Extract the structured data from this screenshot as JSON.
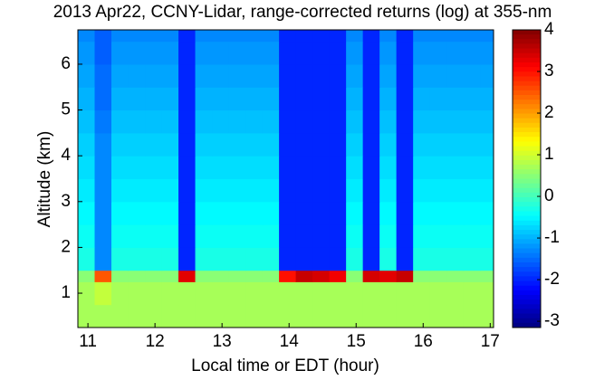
{
  "chart_data": {
    "type": "heatmap",
    "title": "2013 Apr22, CCNY-Lidar, range-corrected returns (log) at 355-nm",
    "x_label": "Local time or EDT (hour)",
    "y_label": "Altitude (km)",
    "colormap": "jet",
    "x_edges": [
      10.85,
      11.1,
      11.35,
      11.6,
      11.85,
      12.1,
      12.35,
      12.6,
      12.85,
      13.1,
      13.35,
      13.6,
      13.85,
      14.1,
      14.35,
      14.6,
      14.85,
      15.1,
      15.35,
      15.6,
      15.85,
      16.1,
      16.35,
      16.6,
      16.85,
      17.05
    ],
    "y_edges": [
      0.25,
      0.75,
      1.25,
      1.5,
      2,
      2.5,
      3,
      3.5,
      4,
      4.5,
      5,
      5.5,
      6,
      6.5,
      6.75
    ],
    "z": [
      [
        0.7,
        0.7,
        0.7,
        0.7,
        0.7,
        0.7,
        0.7,
        0.7,
        0.7,
        0.7,
        0.7,
        0.7,
        0.7,
        0.7,
        0.7,
        0.7,
        0.7,
        0.7,
        0.7,
        0.7,
        0.7,
        0.7,
        0.7,
        0.7,
        0.7
      ],
      [
        0.7,
        0.9,
        0.7,
        0.7,
        0.7,
        0.7,
        0.7,
        0.7,
        0.7,
        0.7,
        0.7,
        0.7,
        0.7,
        0.7,
        0.7,
        0.7,
        0.7,
        0.7,
        0.7,
        0.7,
        0.7,
        0.7,
        0.7,
        0.7,
        0.7
      ],
      [
        0.5,
        2.5,
        0.5,
        0.5,
        0.5,
        0.5,
        3.3,
        0.5,
        0.5,
        0.5,
        0.5,
        0.5,
        3.0,
        3.5,
        3.4,
        3.2,
        0.5,
        3.4,
        3.3,
        3.5,
        0.5,
        0.5,
        0.5,
        0.5,
        0.5
      ],
      [
        -0.3,
        -1.3,
        -0.3,
        -0.3,
        -0.3,
        -0.3,
        -2,
        -0.3,
        -0.3,
        -0.3,
        -0.3,
        -0.3,
        -2,
        -2,
        -2,
        -2,
        -0.3,
        -2,
        -0.3,
        -2,
        -0.3,
        -0.3,
        -0.3,
        -0.3,
        -0.3
      ],
      [
        -0.4,
        -1.3,
        -0.4,
        -0.4,
        -0.4,
        -0.4,
        -2,
        -0.4,
        -0.4,
        -0.4,
        -0.4,
        -0.4,
        -2,
        -2,
        -2,
        -2,
        -0.4,
        -2,
        -0.4,
        -2,
        -0.4,
        -0.4,
        -0.4,
        -0.4,
        -0.4
      ],
      [
        -0.5,
        -1.3,
        -0.5,
        -0.5,
        -0.5,
        -0.5,
        -2,
        -0.5,
        -0.5,
        -0.5,
        -0.5,
        -0.5,
        -2,
        -2,
        -2,
        -2,
        -0.5,
        -2,
        -0.5,
        -2,
        -0.5,
        -0.5,
        -0.5,
        -0.5,
        -0.5
      ],
      [
        -0.6,
        -1.3,
        -0.6,
        -0.6,
        -0.6,
        -0.6,
        -2,
        -0.6,
        -0.6,
        -0.6,
        -0.6,
        -0.6,
        -2,
        -2,
        -2,
        -2,
        -0.6,
        -2,
        -0.6,
        -2,
        -0.6,
        -0.6,
        -0.6,
        -0.6,
        -0.6
      ],
      [
        -0.7,
        -1.3,
        -0.7,
        -0.7,
        -0.7,
        -0.7,
        -2,
        -0.7,
        -0.7,
        -0.7,
        -0.7,
        -0.7,
        -2,
        -2,
        -2,
        -2,
        -0.7,
        -2,
        -0.7,
        -2,
        -0.7,
        -0.7,
        -0.7,
        -0.7,
        -0.7
      ],
      [
        -0.8,
        -1.3,
        -0.8,
        -0.8,
        -0.8,
        -0.8,
        -2,
        -0.8,
        -0.8,
        -0.8,
        -0.8,
        -0.8,
        -2,
        -2,
        -2,
        -2,
        -0.8,
        -2,
        -0.8,
        -2,
        -0.8,
        -0.8,
        -0.8,
        -0.8,
        -0.8
      ],
      [
        -0.9,
        -1.4,
        -0.9,
        -0.9,
        -0.9,
        -0.9,
        -2,
        -0.9,
        -0.9,
        -0.9,
        -0.9,
        -0.9,
        -2,
        -2,
        -2,
        -2,
        -0.9,
        -2,
        -0.9,
        -2,
        -0.9,
        -0.9,
        -0.9,
        -0.9,
        -0.9
      ],
      [
        -1.0,
        -1.5,
        -1.0,
        -1.0,
        -1.0,
        -1.0,
        -2,
        -1.0,
        -1.0,
        -1.0,
        -1.0,
        -1.0,
        -2,
        -2,
        -2,
        -2,
        -1.0,
        -2,
        -1.0,
        -2,
        -1.0,
        -1.0,
        -1.0,
        -1.0,
        -1.0
      ],
      [
        -1.1,
        -1.5,
        -1.1,
        -1.1,
        -1.1,
        -1.1,
        -2,
        -1.1,
        -1.1,
        -1.1,
        -1.1,
        -1.1,
        -2,
        -2,
        -2,
        -2,
        -1.1,
        -2,
        -1.1,
        -2,
        -1.1,
        -1.1,
        -1.1,
        -1.1,
        -1.1
      ],
      [
        -1.2,
        -1.6,
        -1.2,
        -1.2,
        -1.2,
        -1.2,
        -2,
        -1.2,
        -1.2,
        -1.2,
        -1.2,
        -1.2,
        -2,
        -2,
        -2,
        -2,
        -1.2,
        -2,
        -1.2,
        -2,
        -1.2,
        -1.2,
        -1.2,
        -1.2,
        -1.2
      ],
      [
        -1.3,
        -1.6,
        -1.3,
        -1.3,
        -1.3,
        -1.3,
        -2,
        -1.3,
        -1.3,
        -1.3,
        -1.3,
        -1.3,
        -2,
        -2,
        -2,
        -2,
        -1.3,
        -2,
        -1.3,
        -2,
        -1.3,
        -1.3,
        -1.3,
        -1.3,
        -1.3
      ]
    ],
    "xlim": [
      10.85,
      17.05
    ],
    "xticks": [
      11,
      12,
      13,
      14,
      15,
      16,
      17
    ],
    "ylim": [
      0.25,
      6.75
    ],
    "yticks": [
      1,
      2,
      3,
      4,
      5,
      6
    ],
    "clim": [
      -3.15,
      4
    ],
    "cticks": [
      -3,
      -2,
      -1,
      0,
      1,
      2,
      3,
      4
    ]
  }
}
